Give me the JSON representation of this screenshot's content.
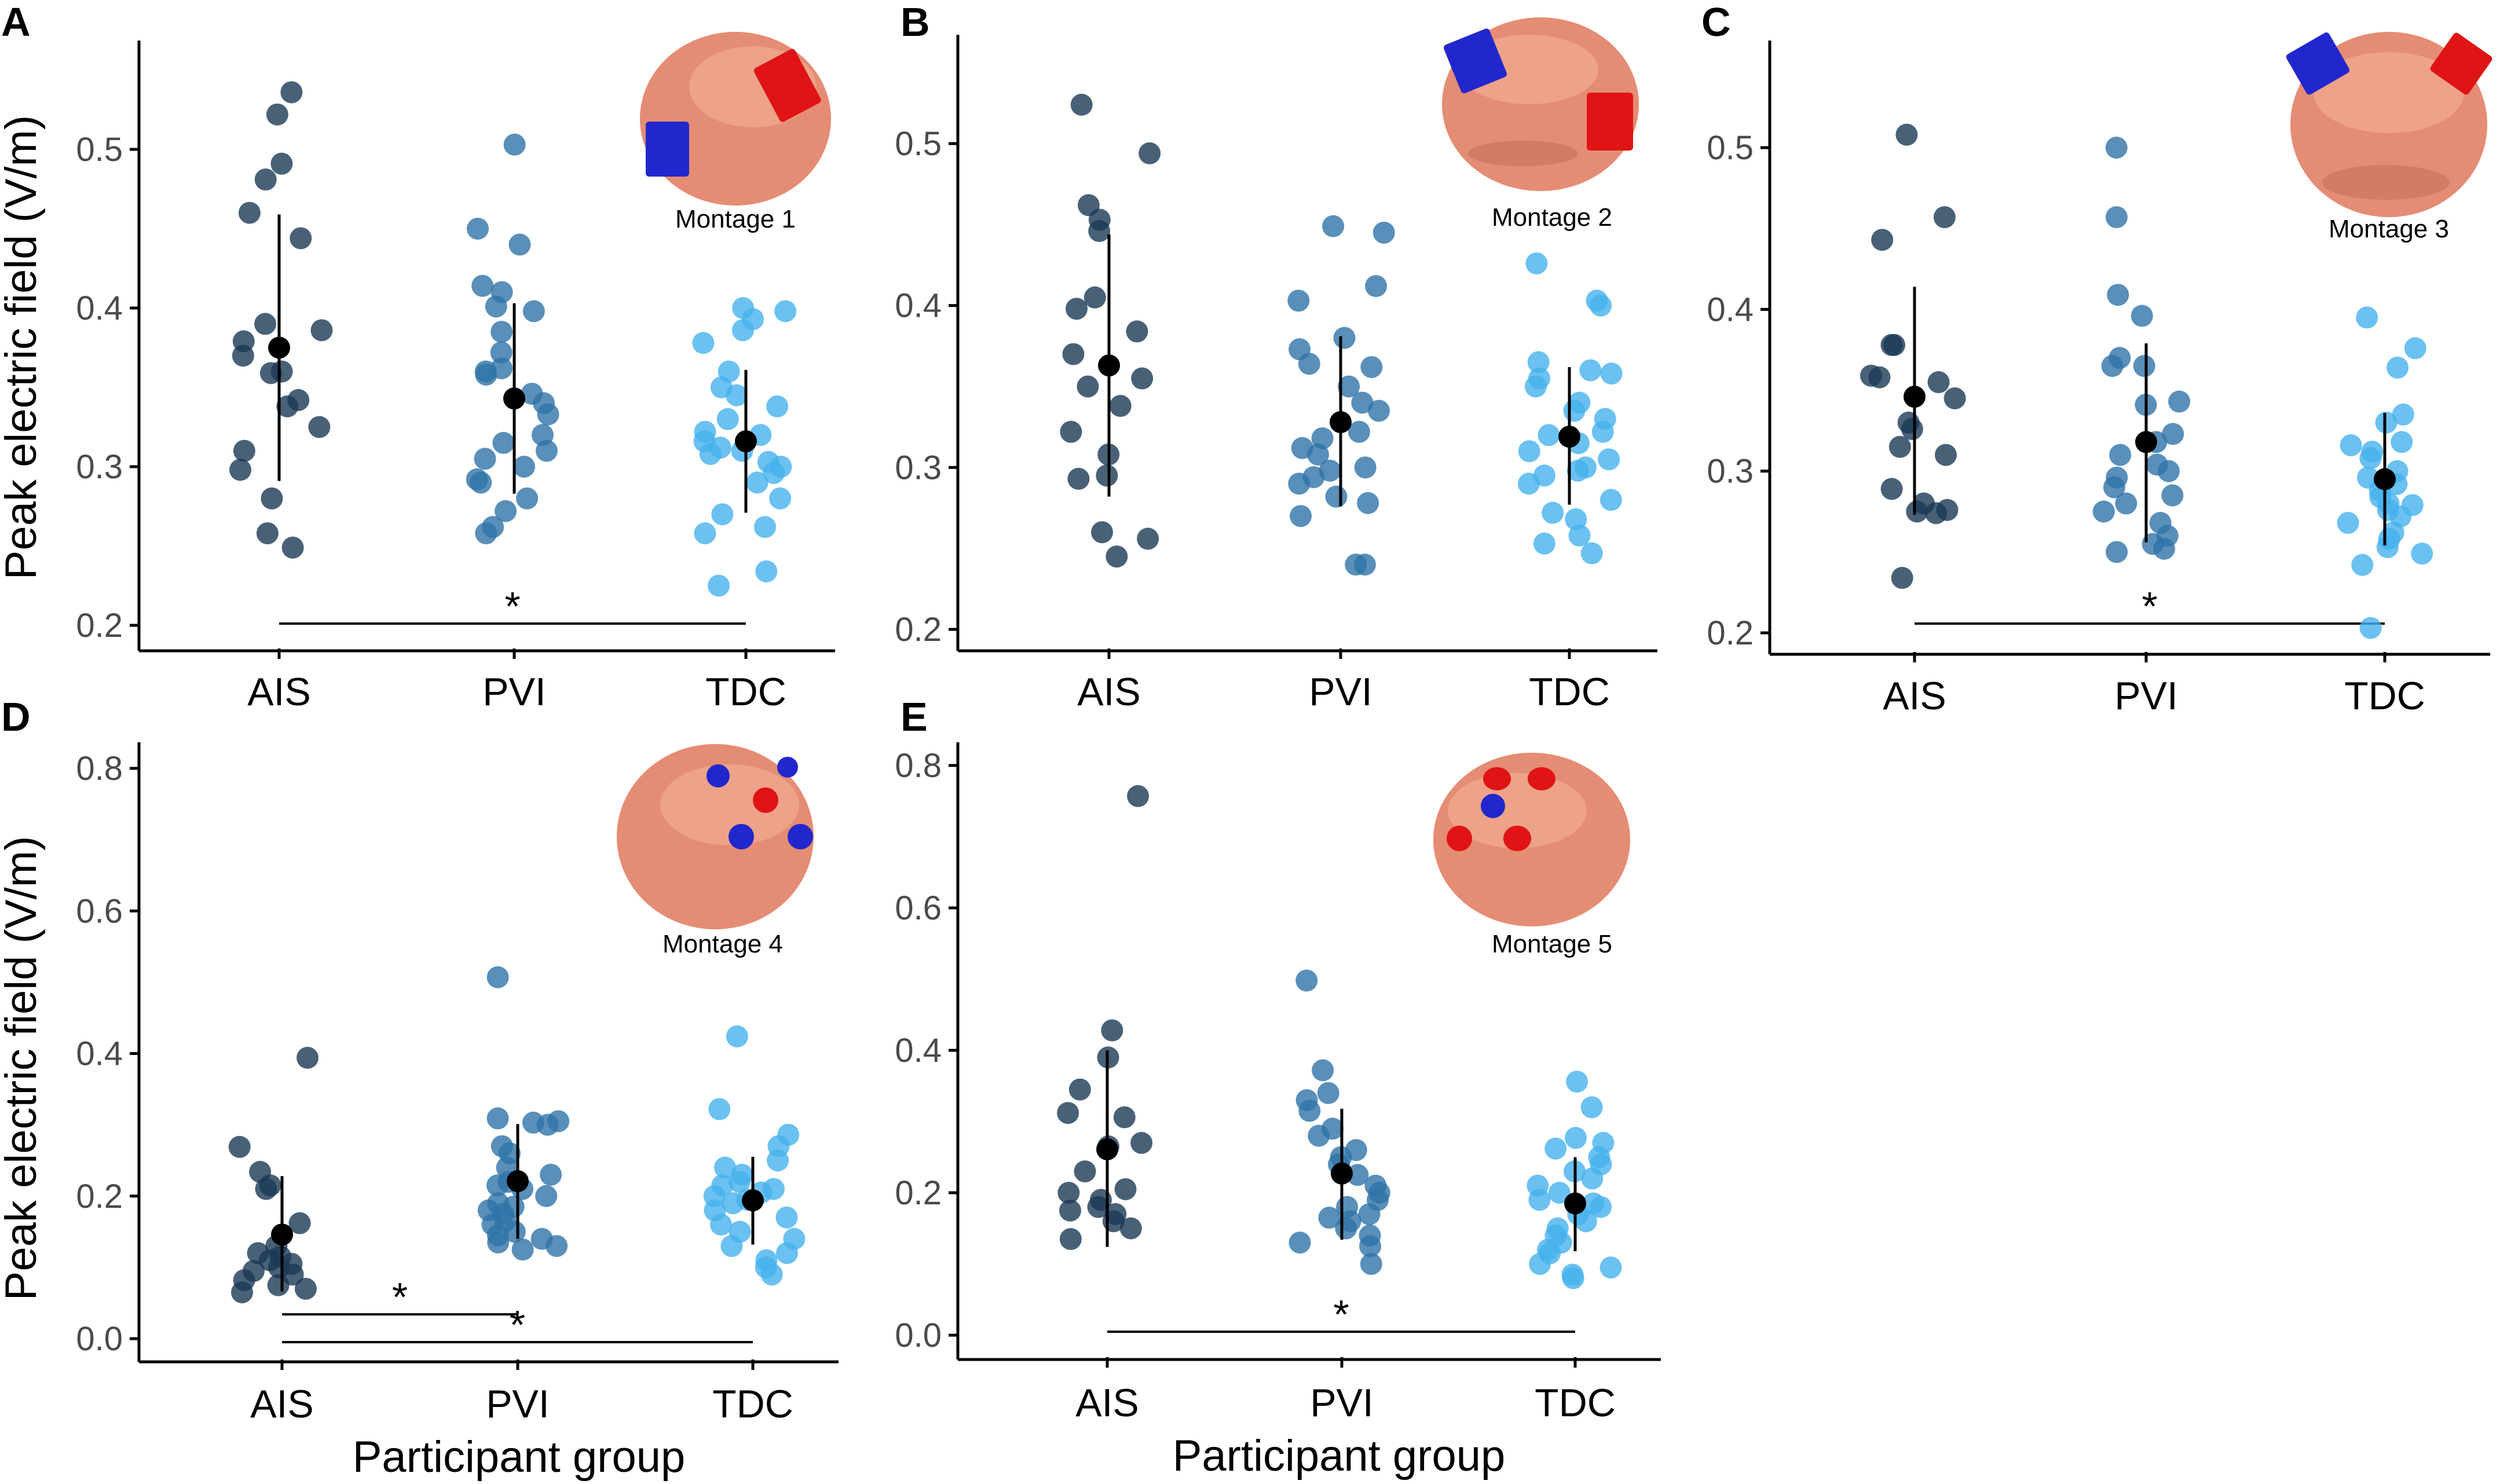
{
  "figure": {
    "shared_ylabel": "Peak electric field (V/m)",
    "shared_xlabel": "Participant group",
    "group_colors": {
      "AIS": "#1c3a55",
      "PVI": "#2f73a8",
      "TDC": "#46b2ee"
    },
    "mean_marker_color": "#000000"
  },
  "chart_data": [
    {
      "panel": "A",
      "type": "scatter",
      "montage_label": "Montage 1",
      "categories": [
        "AIS",
        "PVI",
        "TDC"
      ],
      "ylim": [
        0.19,
        0.57
      ],
      "yticks": [
        0.2,
        0.3,
        0.4,
        0.5
      ],
      "tick_labels": [
        "0.2",
        "0.3",
        "0.4",
        "0.5"
      ],
      "series": [
        {
          "name": "AIS",
          "points": [
            0.536,
            0.522,
            0.491,
            0.481,
            0.46,
            0.444,
            0.39,
            0.386,
            0.379,
            0.37,
            0.36,
            0.359,
            0.342,
            0.338,
            0.325,
            0.31,
            0.298,
            0.28,
            0.258,
            0.249
          ],
          "mean": 0.375,
          "sd_low": 0.291,
          "sd_high": 0.459
        },
        {
          "name": "PVI",
          "points": [
            0.503,
            0.45,
            0.44,
            0.414,
            0.41,
            0.401,
            0.398,
            0.385,
            0.372,
            0.362,
            0.36,
            0.358,
            0.346,
            0.34,
            0.333,
            0.32,
            0.315,
            0.31,
            0.305,
            0.3,
            0.292,
            0.29,
            0.28,
            0.272,
            0.262,
            0.258
          ],
          "mean": 0.343,
          "sd_low": 0.283,
          "sd_high": 0.403
        },
        {
          "name": "TDC",
          "points": [
            0.4,
            0.398,
            0.393,
            0.386,
            0.378,
            0.36,
            0.35,
            0.345,
            0.338,
            0.33,
            0.322,
            0.32,
            0.316,
            0.312,
            0.31,
            0.308,
            0.303,
            0.3,
            0.296,
            0.29,
            0.28,
            0.27,
            0.262,
            0.258,
            0.234,
            0.225
          ],
          "mean": 0.316,
          "sd_low": 0.271,
          "sd_high": 0.361
        }
      ],
      "significance": [
        {
          "from": "AIS",
          "to": "TDC",
          "label": "*"
        }
      ]
    },
    {
      "panel": "B",
      "type": "scatter",
      "montage_label": "Montage 2",
      "categories": [
        "AIS",
        "PVI",
        "TDC"
      ],
      "ylim": [
        0.18,
        0.57
      ],
      "yticks": [
        0.2,
        0.3,
        0.4,
        0.5
      ],
      "tick_labels": [
        "0.2",
        "0.3",
        "0.4",
        "0.5"
      ],
      "series": [
        {
          "name": "AIS",
          "points": [
            0.524,
            0.494,
            0.462,
            0.453,
            0.446,
            0.405,
            0.398,
            0.384,
            0.37,
            0.355,
            0.35,
            0.338,
            0.322,
            0.308,
            0.295,
            0.293,
            0.26,
            0.256,
            0.245
          ],
          "mean": 0.363,
          "sd_low": 0.282,
          "sd_high": 0.444
        },
        {
          "name": "PVI",
          "points": [
            0.449,
            0.445,
            0.412,
            0.403,
            0.38,
            0.373,
            0.364,
            0.362,
            0.35,
            0.34,
            0.335,
            0.322,
            0.318,
            0.312,
            0.308,
            0.3,
            0.298,
            0.294,
            0.29,
            0.282,
            0.278,
            0.27,
            0.24,
            0.24
          ],
          "mean": 0.328,
          "sd_low": 0.276,
          "sd_high": 0.381
        },
        {
          "name": "TDC",
          "points": [
            0.426,
            0.403,
            0.4,
            0.365,
            0.36,
            0.358,
            0.355,
            0.35,
            0.34,
            0.335,
            0.33,
            0.322,
            0.32,
            0.315,
            0.31,
            0.305,
            0.3,
            0.298,
            0.295,
            0.29,
            0.28,
            0.272,
            0.268,
            0.258,
            0.253,
            0.247
          ],
          "mean": 0.319,
          "sd_low": 0.277,
          "sd_high": 0.362
        }
      ],
      "significance": []
    },
    {
      "panel": "C",
      "type": "scatter",
      "montage_label": "Montage 3",
      "categories": [
        "AIS",
        "PVI",
        "TDC"
      ],
      "ylim": [
        0.19,
        0.55
      ],
      "yticks": [
        0.2,
        0.3,
        0.4,
        0.5
      ],
      "tick_labels": [
        "0.2",
        "0.3",
        "0.4",
        "0.5"
      ],
      "series": [
        {
          "name": "AIS",
          "points": [
            0.508,
            0.457,
            0.443,
            0.378,
            0.378,
            0.359,
            0.358,
            0.355,
            0.345,
            0.33,
            0.326,
            0.315,
            0.31,
            0.289,
            0.28,
            0.276,
            0.275,
            0.274,
            0.234
          ],
          "mean": 0.346,
          "sd_low": 0.273,
          "sd_high": 0.414
        },
        {
          "name": "PVI",
          "points": [
            0.5,
            0.457,
            0.409,
            0.396,
            0.37,
            0.365,
            0.365,
            0.343,
            0.341,
            0.323,
            0.318,
            0.31,
            0.304,
            0.3,
            0.296,
            0.29,
            0.285,
            0.28,
            0.275,
            0.268,
            0.26,
            0.255,
            0.252,
            0.25
          ],
          "mean": 0.318,
          "sd_low": 0.256,
          "sd_high": 0.379
        },
        {
          "name": "TDC",
          "points": [
            0.395,
            0.376,
            0.364,
            0.335,
            0.33,
            0.318,
            0.316,
            0.312,
            0.308,
            0.3,
            0.296,
            0.292,
            0.288,
            0.284,
            0.28,
            0.279,
            0.276,
            0.272,
            0.268,
            0.262,
            0.258,
            0.253,
            0.249,
            0.242,
            0.203
          ],
          "mean": 0.295,
          "sd_low": 0.254,
          "sd_high": 0.336
        }
      ],
      "significance": [
        {
          "from": "AIS",
          "to": "TDC",
          "label": "*"
        }
      ]
    },
    {
      "panel": "D",
      "type": "scatter",
      "montage_label": "Montage 4",
      "categories": [
        "AIS",
        "PVI",
        "TDC"
      ],
      "ylim": [
        -0.04,
        0.84
      ],
      "yticks": [
        0.0,
        0.2,
        0.4,
        0.6,
        0.8
      ],
      "tick_labels": [
        "0.0",
        "0.2",
        "0.4",
        "0.6",
        "0.8"
      ],
      "series": [
        {
          "name": "AIS",
          "points": [
            0.394,
            0.269,
            0.234,
            0.215,
            0.21,
            0.162,
            0.13,
            0.12,
            0.115,
            0.11,
            0.105,
            0.1,
            0.095,
            0.09,
            0.082,
            0.075,
            0.07,
            0.065
          ],
          "mean": 0.146,
          "sd_low": 0.066,
          "sd_high": 0.228
        },
        {
          "name": "PVI",
          "points": [
            0.507,
            0.309,
            0.305,
            0.303,
            0.3,
            0.27,
            0.26,
            0.24,
            0.23,
            0.22,
            0.215,
            0.21,
            0.2,
            0.19,
            0.185,
            0.18,
            0.175,
            0.165,
            0.16,
            0.15,
            0.145,
            0.14,
            0.135,
            0.13,
            0.125
          ],
          "mean": 0.221,
          "sd_low": 0.14,
          "sd_high": 0.301
        },
        {
          "name": "TDC",
          "points": [
            0.424,
            0.322,
            0.286,
            0.27,
            0.25,
            0.24,
            0.23,
            0.22,
            0.215,
            0.21,
            0.205,
            0.2,
            0.195,
            0.19,
            0.18,
            0.17,
            0.16,
            0.15,
            0.14,
            0.13,
            0.12,
            0.11,
            0.1,
            0.09
          ],
          "mean": 0.194,
          "sd_low": 0.132,
          "sd_high": 0.255
        }
      ],
      "significance": [
        {
          "from": "AIS",
          "to": "PVI",
          "label": "*"
        },
        {
          "from": "AIS",
          "to": "TDC",
          "label": "*"
        }
      ]
    },
    {
      "panel": "E",
      "type": "scatter",
      "montage_label": "Montage 5",
      "categories": [
        "AIS",
        "PVI",
        "TDC"
      ],
      "ylim": [
        -0.04,
        0.84
      ],
      "yticks": [
        0.0,
        0.2,
        0.4,
        0.6,
        0.8
      ],
      "tick_labels": [
        "0.0",
        "0.2",
        "0.4",
        "0.6",
        "0.8"
      ],
      "series": [
        {
          "name": "AIS",
          "points": [
            0.757,
            0.428,
            0.39,
            0.345,
            0.312,
            0.306,
            0.27,
            0.265,
            0.23,
            0.205,
            0.2,
            0.19,
            0.18,
            0.175,
            0.17,
            0.16,
            0.15,
            0.135
          ],
          "mean": 0.261,
          "sd_low": 0.124,
          "sd_high": 0.4
        },
        {
          "name": "PVI",
          "points": [
            0.498,
            0.372,
            0.34,
            0.33,
            0.315,
            0.29,
            0.28,
            0.26,
            0.25,
            0.24,
            0.225,
            0.21,
            0.2,
            0.19,
            0.18,
            0.17,
            0.165,
            0.16,
            0.15,
            0.14,
            0.13,
            0.125,
            0.1
          ],
          "mean": 0.227,
          "sd_low": 0.134,
          "sd_high": 0.318
        },
        {
          "name": "TDC",
          "points": [
            0.356,
            0.32,
            0.277,
            0.27,
            0.262,
            0.25,
            0.24,
            0.23,
            0.22,
            0.21,
            0.2,
            0.19,
            0.185,
            0.18,
            0.17,
            0.16,
            0.15,
            0.14,
            0.13,
            0.12,
            0.115,
            0.1,
            0.095,
            0.085,
            0.08
          ],
          "mean": 0.185,
          "sd_low": 0.118,
          "sd_high": 0.25
        }
      ],
      "significance": [
        {
          "from": "AIS",
          "to": "TDC",
          "label": "*"
        }
      ]
    }
  ]
}
